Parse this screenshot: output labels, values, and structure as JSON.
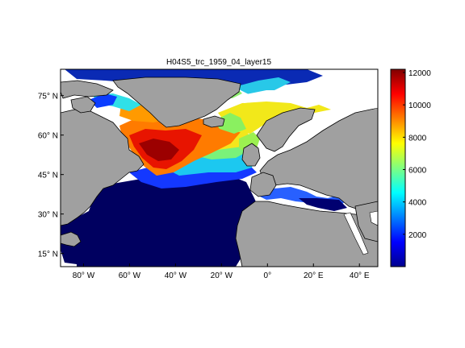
{
  "title": "H04S5_trc_1959_04_layer15",
  "map": {
    "lon_range": [
      -90,
      48
    ],
    "lat_range": [
      10,
      85
    ],
    "longitude_ticks": [
      {
        "value": -80,
        "label": "80° W"
      },
      {
        "value": -60,
        "label": "60° W"
      },
      {
        "value": -40,
        "label": "40° W"
      },
      {
        "value": -20,
        "label": "20° W"
      },
      {
        "value": 0,
        "label": "0°"
      },
      {
        "value": 20,
        "label": "20° E"
      },
      {
        "value": 40,
        "label": "40° E"
      }
    ],
    "latitude_ticks": [
      {
        "value": 15,
        "label": "15° N"
      },
      {
        "value": 30,
        "label": "30° N"
      },
      {
        "value": 45,
        "label": "45° N"
      },
      {
        "value": 60,
        "label": "60° N"
      },
      {
        "value": 75,
        "label": "75° N"
      }
    ],
    "land_color": "#a0a0a0",
    "nodata_color": "#ffffff"
  },
  "colorbar": {
    "range": [
      0,
      12200
    ],
    "ticks": [
      "2000",
      "4000",
      "6000",
      "8000",
      "10000",
      "12000"
    ],
    "tick_values": [
      2000,
      4000,
      6000,
      8000,
      10000,
      12000
    ],
    "colormap": "jet"
  }
}
